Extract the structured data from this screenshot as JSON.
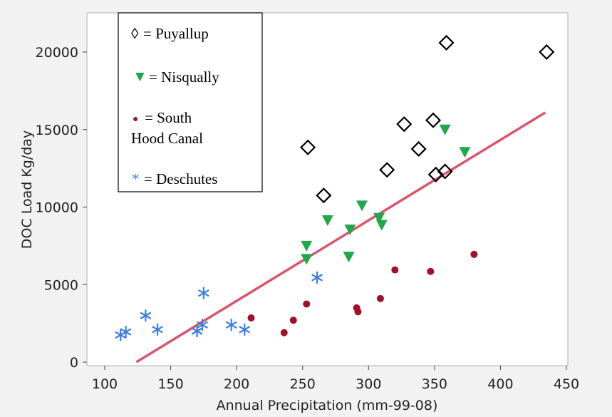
{
  "chart_data": {
    "type": "scatter",
    "title": "",
    "xlabel": "Annual Precipitation (mm-99-08)",
    "ylabel": "DOC Load Kg/day",
    "xlim": [
      100,
      450
    ],
    "ylim": [
      0,
      22500
    ],
    "xticks": [
      100,
      150,
      200,
      250,
      300,
      350,
      400,
      450
    ],
    "yticks": [
      0,
      5000,
      10000,
      15000,
      20000
    ],
    "grid": false,
    "legend_position": "top-left",
    "series": [
      {
        "name": "Puyallup",
        "legend_label": "= Puyallup",
        "symbol": "◊",
        "marker": "open-diamond",
        "color": "#000000",
        "points": [
          [
            254,
            13850
          ],
          [
            266,
            10750
          ],
          [
            314,
            12400
          ],
          [
            327,
            15350
          ],
          [
            338,
            13750
          ],
          [
            349,
            15600
          ],
          [
            351,
            12100
          ],
          [
            358,
            12300
          ],
          [
            359,
            20600
          ],
          [
            435,
            20000
          ]
        ]
      },
      {
        "name": "Nisqually",
        "legend_label": "= Nisqually",
        "symbol": "▼",
        "marker": "down-triangle",
        "color": "#1fa84a",
        "points": [
          [
            253,
            7500
          ],
          [
            253,
            6650
          ],
          [
            269,
            9150
          ],
          [
            285,
            6800
          ],
          [
            286,
            8550
          ],
          [
            295,
            10100
          ],
          [
            308,
            9300
          ],
          [
            310,
            8850
          ],
          [
            358,
            15000
          ],
          [
            373,
            13550
          ]
        ]
      },
      {
        "name": "South Hood Canal",
        "legend_label_line1": "= South",
        "legend_label_line2": "Hood Canal",
        "symbol": "●",
        "marker": "filled-circle",
        "color": "#a0102a",
        "points": [
          [
            211,
            2850
          ],
          [
            236,
            1900
          ],
          [
            243,
            2700
          ],
          [
            253,
            3750
          ],
          [
            291,
            3500
          ],
          [
            292,
            3250
          ],
          [
            309,
            4100
          ],
          [
            320,
            5950
          ],
          [
            347,
            5850
          ],
          [
            380,
            6950
          ]
        ]
      },
      {
        "name": "Deschutes",
        "legend_label": "= Deschutes",
        "symbol": "*",
        "marker": "asterisk",
        "color": "#3a7de0",
        "points": [
          [
            112,
            1750
          ],
          [
            116,
            1950
          ],
          [
            131,
            3000
          ],
          [
            140,
            2100
          ],
          [
            170,
            2000
          ],
          [
            174,
            2400
          ],
          [
            175,
            4450
          ],
          [
            196,
            2400
          ],
          [
            206,
            2100
          ],
          [
            261,
            5450
          ]
        ]
      }
    ],
    "fit_line": {
      "color": "#d9566b",
      "start": [
        124,
        0
      ],
      "end": [
        434,
        16100
      ]
    }
  }
}
